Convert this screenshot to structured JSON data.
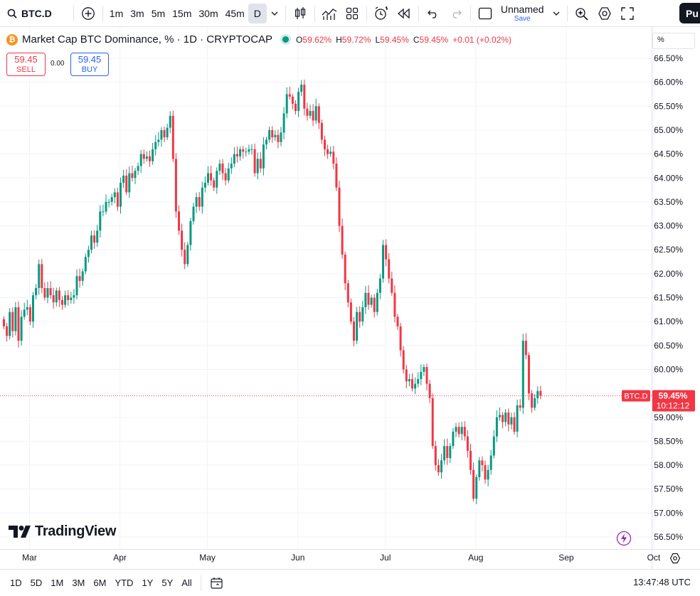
{
  "toolbar": {
    "symbol": "BTC.D",
    "intervals": [
      "1m",
      "3m",
      "5m",
      "15m",
      "30m",
      "45m",
      "D"
    ],
    "active_interval": "D",
    "layout_name": "Unnamed",
    "layout_save": "Save",
    "publish_label": "Pu"
  },
  "legend": {
    "title": "Market Cap BTC Dominance, % · 1D · CRYPTOCAP",
    "coin_glyph": "₿",
    "o_key": "O",
    "o_val": "59.62%",
    "h_key": "H",
    "h_val": "59.72%",
    "l_key": "L",
    "l_val": "59.45%",
    "c_key": "C",
    "c_val": "59.45%",
    "change": "+0.01 (+0.02%)"
  },
  "trade": {
    "sell_value": "59.45",
    "sell_label": "SELL",
    "spread": "0.00",
    "buy_value": "59.45",
    "buy_label": "BUY"
  },
  "price_scale_unit": "%",
  "last_price": {
    "symbol_tag": "BTC.D",
    "value": "59.45%",
    "countdown": "10:12:12"
  },
  "branding": "TradingView",
  "bottom": {
    "ranges": [
      "1D",
      "5D",
      "1M",
      "3M",
      "6M",
      "YTD",
      "1Y",
      "5Y",
      "All"
    ],
    "clock": "13:47:48 UTC"
  },
  "colors": {
    "up": "#089981",
    "down": "#f23645",
    "grid": "#f0f3fa",
    "text": "#131722",
    "accent": "#2962ff"
  },
  "chart_data": {
    "type": "candlestick",
    "title": "Market Cap BTC Dominance, % · 1D · CRYPTOCAP",
    "xlabel": "",
    "ylabel": "",
    "ylim": [
      56.3,
      66.75
    ],
    "y_ticks": [
      "56.50%",
      "57.00%",
      "57.50%",
      "58.00%",
      "58.50%",
      "59.00%",
      "59.50%",
      "60.00%",
      "60.50%",
      "61.00%",
      "61.50%",
      "62.00%",
      "62.50%",
      "63.00%",
      "63.50%",
      "64.00%",
      "64.50%",
      "65.00%",
      "65.50%",
      "66.00%",
      "66.50%"
    ],
    "x_ticks": [
      {
        "label": "Mar",
        "index": 5
      },
      {
        "label": "Apr",
        "index": 36
      },
      {
        "label": "May",
        "index": 66
      },
      {
        "label": "Jun",
        "index": 97
      },
      {
        "label": "Jul",
        "index": 127
      },
      {
        "label": "Aug",
        "index": 158
      },
      {
        "label": "Sep",
        "index": 189
      },
      {
        "label": "Oct",
        "index": 219
      }
    ],
    "last_close": 59.45,
    "close": [
      60.9,
      60.7,
      61.2,
      60.8,
      61.3,
      60.6,
      61.1,
      61.25,
      61.3,
      61.0,
      61.55,
      61.7,
      62.2,
      61.7,
      61.5,
      61.7,
      61.55,
      61.4,
      61.65,
      61.45,
      61.35,
      61.55,
      61.45,
      61.5,
      61.55,
      61.95,
      61.85,
      62.05,
      62.35,
      62.5,
      62.8,
      62.65,
      62.9,
      63.3,
      63.3,
      63.5,
      63.5,
      63.6,
      63.7,
      63.4,
      63.9,
      64.05,
      63.7,
      64.1,
      64.0,
      64.15,
      64.25,
      64.5,
      64.4,
      64.45,
      64.35,
      64.6,
      64.75,
      64.8,
      65.0,
      64.85,
      65.05,
      65.3,
      64.4,
      63.3,
      62.9,
      62.5,
      62.2,
      62.6,
      63.1,
      63.4,
      63.6,
      63.4,
      63.8,
      63.9,
      64.1,
      63.95,
      63.8,
      64.15,
      64.3,
      64.1,
      63.95,
      64.2,
      64.3,
      64.5,
      64.45,
      64.6,
      64.55,
      64.55,
      64.6,
      64.6,
      64.1,
      64.4,
      64.2,
      64.7,
      64.8,
      65.0,
      64.85,
      64.9,
      64.75,
      64.95,
      65.35,
      65.75,
      65.7,
      65.55,
      65.4,
      65.8,
      65.95,
      65.45,
      65.3,
      65.4,
      65.2,
      65.5,
      65.15,
      64.8,
      64.6,
      64.5,
      64.55,
      64.3,
      63.8,
      63.0,
      62.4,
      61.8,
      61.4,
      61.0,
      60.6,
      61.2,
      61.0,
      61.3,
      61.6,
      61.35,
      61.5,
      61.2,
      61.6,
      61.9,
      62.6,
      62.3,
      61.9,
      61.6,
      61.1,
      60.9,
      60.4,
      60.0,
      59.75,
      59.8,
      59.6,
      59.7,
      59.8,
      59.95,
      60.05,
      59.7,
      59.4,
      58.4,
      58.0,
      57.85,
      58.1,
      58.4,
      58.15,
      58.4,
      58.7,
      58.8,
      58.65,
      58.8,
      58.6,
      58.3,
      57.9,
      57.3,
      57.75,
      58.1,
      58.0,
      57.7,
      57.9,
      58.2,
      58.6,
      59.0,
      59.05,
      58.9,
      59.1,
      58.85,
      59.0,
      58.7,
      59.25,
      59.2,
      60.6,
      60.3,
      59.5,
      59.2,
      59.4,
      59.55,
      59.45
    ]
  }
}
